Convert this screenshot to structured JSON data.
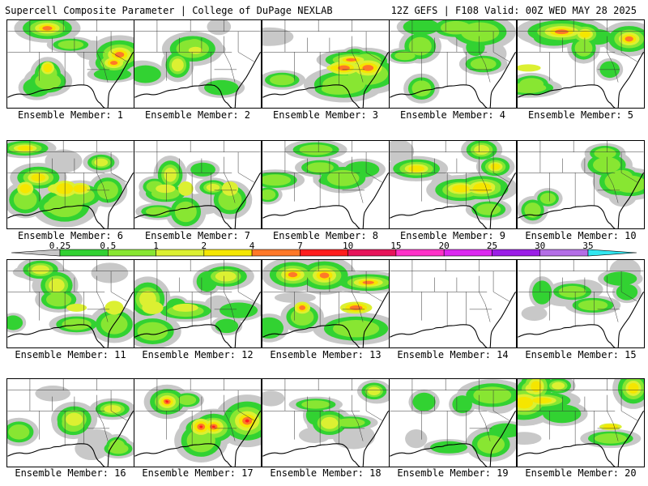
{
  "header": {
    "left": "Supercell Composite Parameter | College of DuPage NEXLAB",
    "right": "12Z GEFS | F108 Valid: 00Z WED MAY 28 2025"
  },
  "colorbar": {
    "labels": [
      "0.25",
      "0.5",
      "1",
      "2",
      "4",
      "7",
      "10",
      "15",
      "20",
      "25",
      "30",
      "35"
    ],
    "colors": [
      "#c8c8c8",
      "#32d232",
      "#88e632",
      "#dcf032",
      "#f5e600",
      "#ff7828",
      "#ff1e1e",
      "#e6145a",
      "#ff32c8",
      "#dc28f0",
      "#9b1ee6",
      "#b46ee6",
      "#32e6f0"
    ]
  },
  "members": [
    {
      "label": "Ensemble Member: 1",
      "intensity": 0.85
    },
    {
      "label": "Ensemble Member: 2",
      "intensity": 0.6
    },
    {
      "label": "Ensemble Member: 3",
      "intensity": 0.8
    },
    {
      "label": "Ensemble Member: 4",
      "intensity": 0.5
    },
    {
      "label": "Ensemble Member: 5",
      "intensity": 0.9
    },
    {
      "label": "Ensemble Member: 6",
      "intensity": 0.7
    },
    {
      "label": "Ensemble Member: 7",
      "intensity": 0.55
    },
    {
      "label": "Ensemble Member: 8",
      "intensity": 0.45
    },
    {
      "label": "Ensemble Member: 9",
      "intensity": 0.7
    },
    {
      "label": "Ensemble Member: 10",
      "intensity": 0.45
    },
    {
      "label": "Ensemble Member: 11",
      "intensity": 0.55
    },
    {
      "label": "Ensemble Member: 12",
      "intensity": 0.6
    },
    {
      "label": "Ensemble Member: 13",
      "intensity": 0.85
    },
    {
      "label": "Ensemble Member: 14",
      "intensity": 0.0
    },
    {
      "label": "Ensemble Member: 15",
      "intensity": 0.65
    },
    {
      "label": "Ensemble Member: 16",
      "intensity": 0.55
    },
    {
      "label": "Ensemble Member: 17",
      "intensity": 0.95
    },
    {
      "label": "Ensemble Member: 18",
      "intensity": 0.55
    },
    {
      "label": "Ensemble Member: 19",
      "intensity": 0.45
    },
    {
      "label": "Ensemble Member: 20",
      "intensity": 0.75
    }
  ]
}
